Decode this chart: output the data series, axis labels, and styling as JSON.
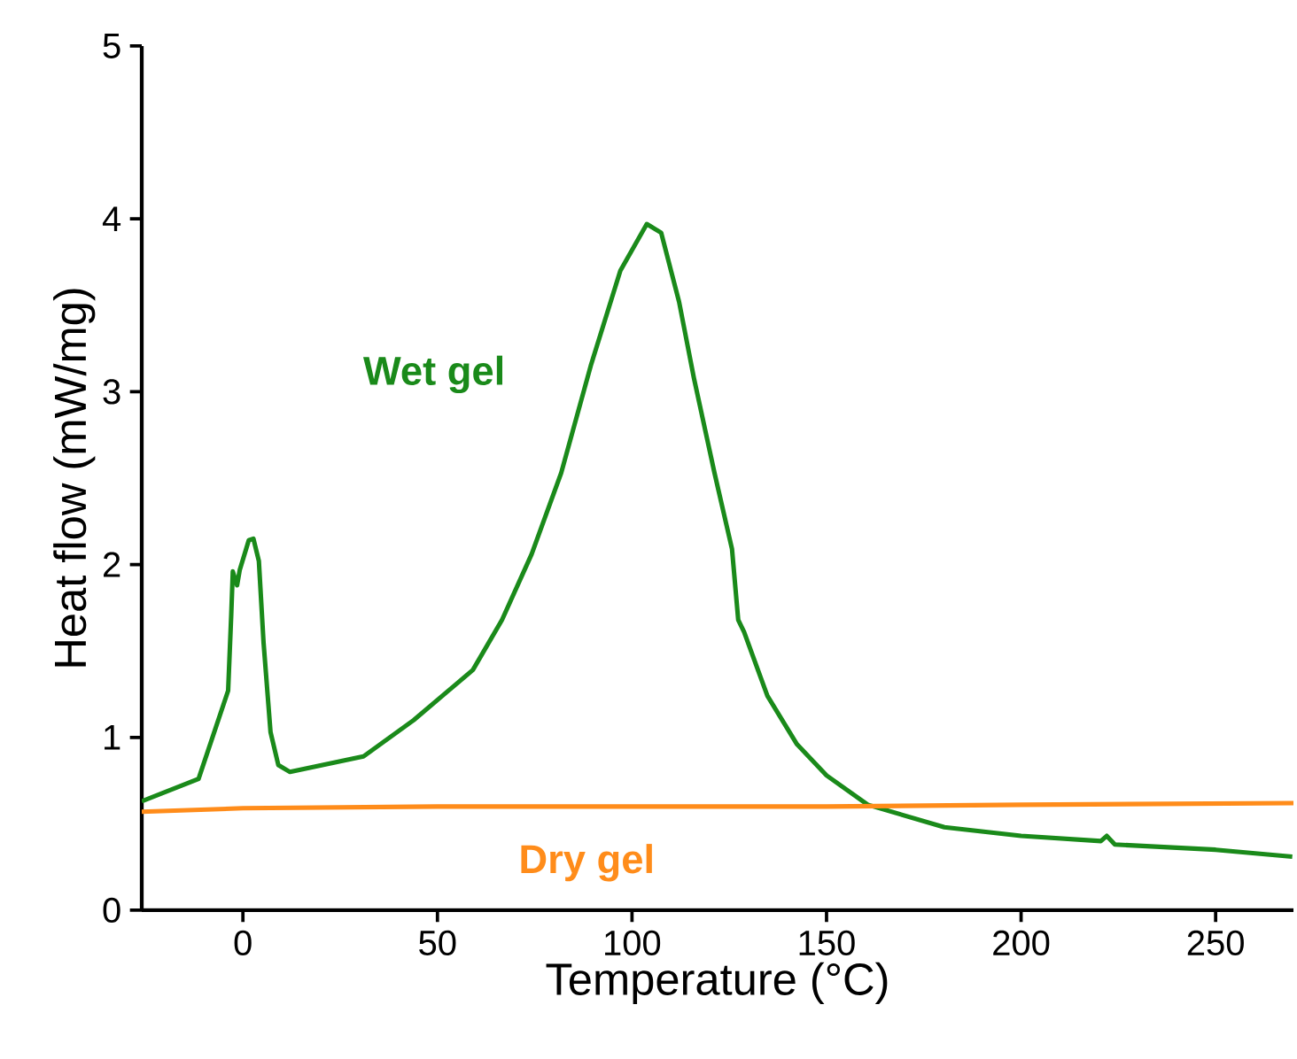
{
  "chart_data": {
    "type": "line",
    "xlabel": "Temperature (°C)",
    "ylabel": "Heat flow (mW/mg)",
    "xlim": [
      -26,
      270
    ],
    "ylim": [
      0,
      5
    ],
    "xticks": [
      0,
      50,
      100,
      150,
      200,
      250
    ],
    "yticks": [
      0,
      1,
      2,
      3,
      4,
      5
    ],
    "grid": false,
    "legend": false,
    "marker": "none",
    "line_style": "solid",
    "series": [
      {
        "name": "Wet gel",
        "color": "#1a8a1a",
        "x": [
          -26,
          -11.4,
          -3.8,
          -3,
          -2.6,
          -1.5,
          -0.8,
          1.5,
          2.7,
          4.1,
          5.3,
          7.1,
          9.1,
          12.1,
          28.8,
          31,
          43.9,
          59.1,
          66.6,
          74.2,
          81.8,
          89.4,
          97,
          103.8,
          107.5,
          112.1,
          115.9,
          121.2,
          125.7,
          127.3,
          128.8,
          134.8,
          142.4,
          150,
          160.6,
          180.3,
          200,
          220.5,
          222,
          224.1,
          250,
          269.7
        ],
        "values": [
          0.63,
          0.76,
          1.27,
          1.71,
          1.96,
          1.88,
          1.97,
          2.14,
          2.15,
          2.02,
          1.55,
          1.03,
          0.84,
          0.8,
          0.88,
          0.89,
          1.1,
          1.39,
          1.68,
          2.06,
          2.53,
          3.15,
          3.7,
          3.97,
          3.92,
          3.52,
          3.08,
          2.53,
          2.09,
          1.68,
          1.61,
          1.24,
          0.96,
          0.78,
          0.61,
          0.48,
          0.43,
          0.4,
          0.43,
          0.38,
          0.35,
          0.31
        ]
      },
      {
        "name": "Dry gel",
        "color": "#ff8c1a",
        "x": [
          -26,
          0,
          50,
          100,
          150,
          200,
          270
        ],
        "values": [
          0.57,
          0.59,
          0.6,
          0.6,
          0.6,
          0.61,
          0.62
        ]
      }
    ]
  }
}
